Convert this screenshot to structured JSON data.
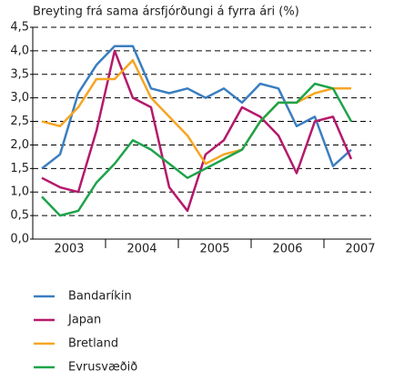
{
  "chart_data": {
    "type": "line",
    "title": "Breyting frá sama ársfjórðungi á fyrra ári (%)",
    "categories": [
      null,
      null,
      null,
      null,
      null,
      null,
      null,
      null,
      null,
      null,
      null,
      null,
      null,
      null,
      null,
      null,
      null,
      null
    ],
    "year_labels": [
      "2003",
      "2004",
      "2005",
      "2006",
      "2007"
    ],
    "series": [
      {
        "name": "Bandaríkin",
        "color": "#3a7ebf",
        "values": [
          1.5,
          1.8,
          3.1,
          3.7,
          4.1,
          4.1,
          3.2,
          3.1,
          3.2,
          3.0,
          3.2,
          2.9,
          3.3,
          3.2,
          2.4,
          2.6,
          1.55,
          1.9
        ]
      },
      {
        "name": "Japan",
        "color": "#b5196b",
        "values": [
          1.3,
          1.1,
          1.0,
          2.3,
          4.0,
          3.0,
          2.8,
          1.1,
          0.6,
          1.8,
          2.1,
          2.8,
          2.6,
          2.2,
          1.4,
          2.5,
          2.6,
          1.7
        ]
      },
      {
        "name": "Bretland",
        "color": "#f5a623",
        "values": [
          2.5,
          2.4,
          2.8,
          3.4,
          3.4,
          3.8,
          3.0,
          2.6,
          2.2,
          1.6,
          1.8,
          1.9,
          2.5,
          2.9,
          2.9,
          3.1,
          3.2,
          3.2
        ]
      },
      {
        "name": "Evrusvæðið",
        "color": "#1ea34a",
        "values": [
          0.9,
          0.5,
          0.6,
          1.2,
          1.6,
          2.1,
          1.9,
          1.6,
          1.3,
          1.5,
          1.7,
          1.9,
          2.5,
          2.9,
          2.9,
          3.3,
          3.2,
          2.5
        ]
      }
    ],
    "ylim": [
      0,
      4.5
    ],
    "yticks": [
      {
        "value": 0,
        "label": "0,0"
      },
      {
        "value": 0.5,
        "label": "0,5"
      },
      {
        "value": 1,
        "label": "1,0"
      },
      {
        "value": 1.5,
        "label": "1,5"
      },
      {
        "value": 2,
        "label": "2,0"
      },
      {
        "value": 2.5,
        "label": "2,5"
      },
      {
        "value": 3,
        "label": "3,0"
      },
      {
        "value": 3.5,
        "label": "3,5"
      },
      {
        "value": 4,
        "label": "4,0"
      },
      {
        "value": 4.5,
        "label": "4,5"
      }
    ],
    "grid": true
  }
}
